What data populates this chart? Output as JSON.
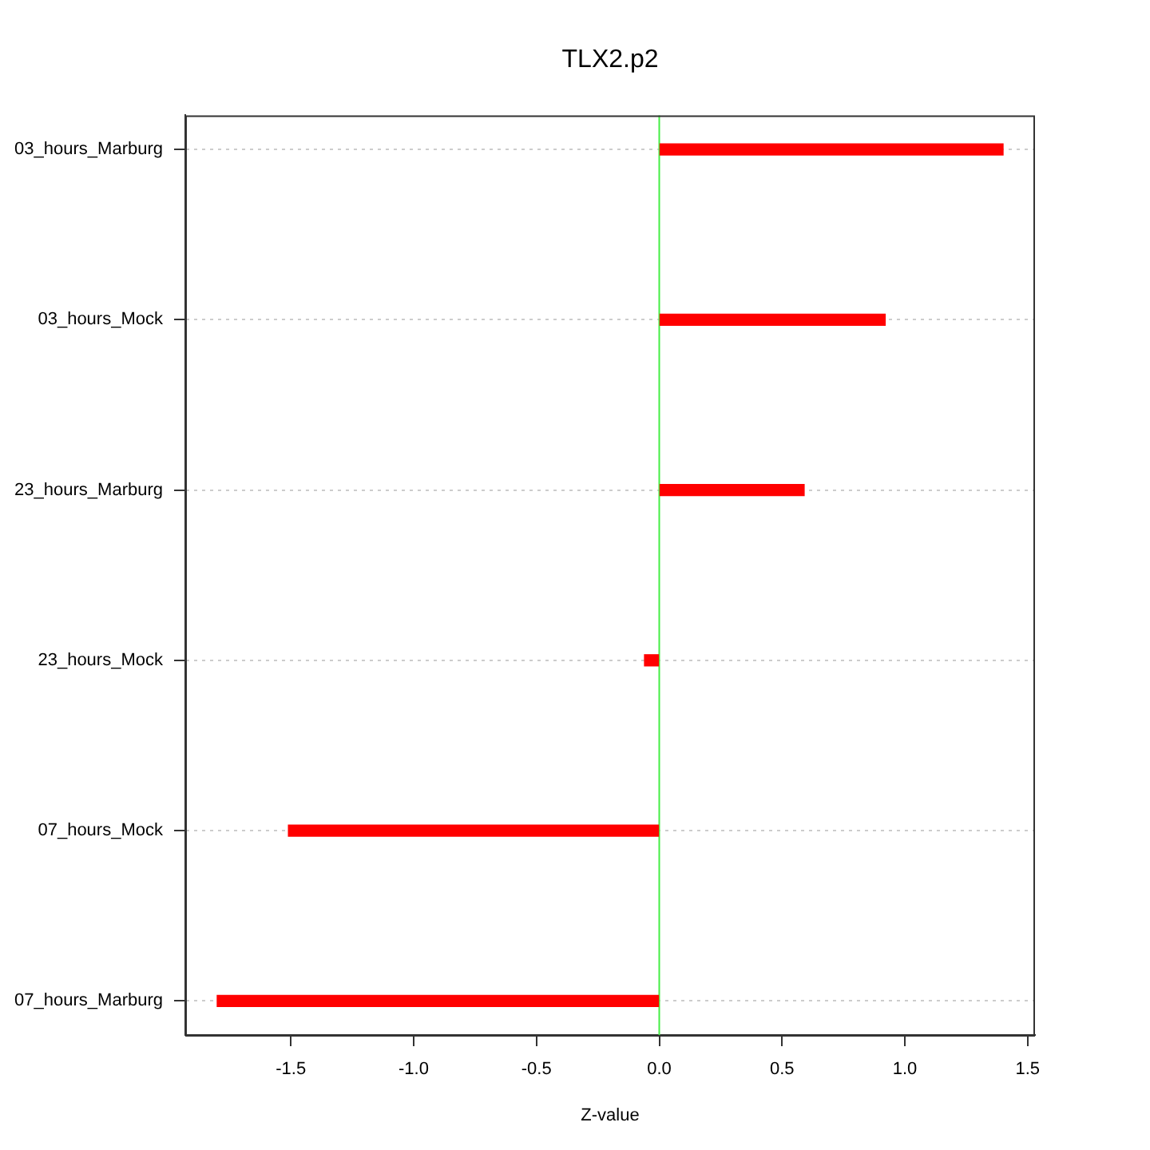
{
  "chart_data": {
    "type": "bar",
    "title": "TLX2.p2",
    "xlabel": "Z-value",
    "orientation": "horizontal",
    "categories": [
      "03_hours_Marburg",
      "03_hours_Mock",
      "23_hours_Marburg",
      "23_hours_Mock",
      "07_hours_Mock",
      "07_hours_Marburg"
    ],
    "values": [
      1.4,
      0.92,
      0.59,
      -0.06,
      -1.51,
      -1.8
    ],
    "color": "#ff0000",
    "xlim": [
      -1.93,
      1.53
    ],
    "xticks": [
      -1.5,
      {
        "value": -1,
        "label": "-1.0"
      },
      -0.5,
      {
        "value": 0,
        "label": "0.0"
      },
      0.5,
      {
        "value": 1,
        "label": "1.0"
      },
      1.5
    ],
    "grid": "y",
    "legend": false,
    "ref_lines": [
      {
        "axis": "x",
        "value": 0,
        "color": "#44ee44"
      }
    ]
  }
}
